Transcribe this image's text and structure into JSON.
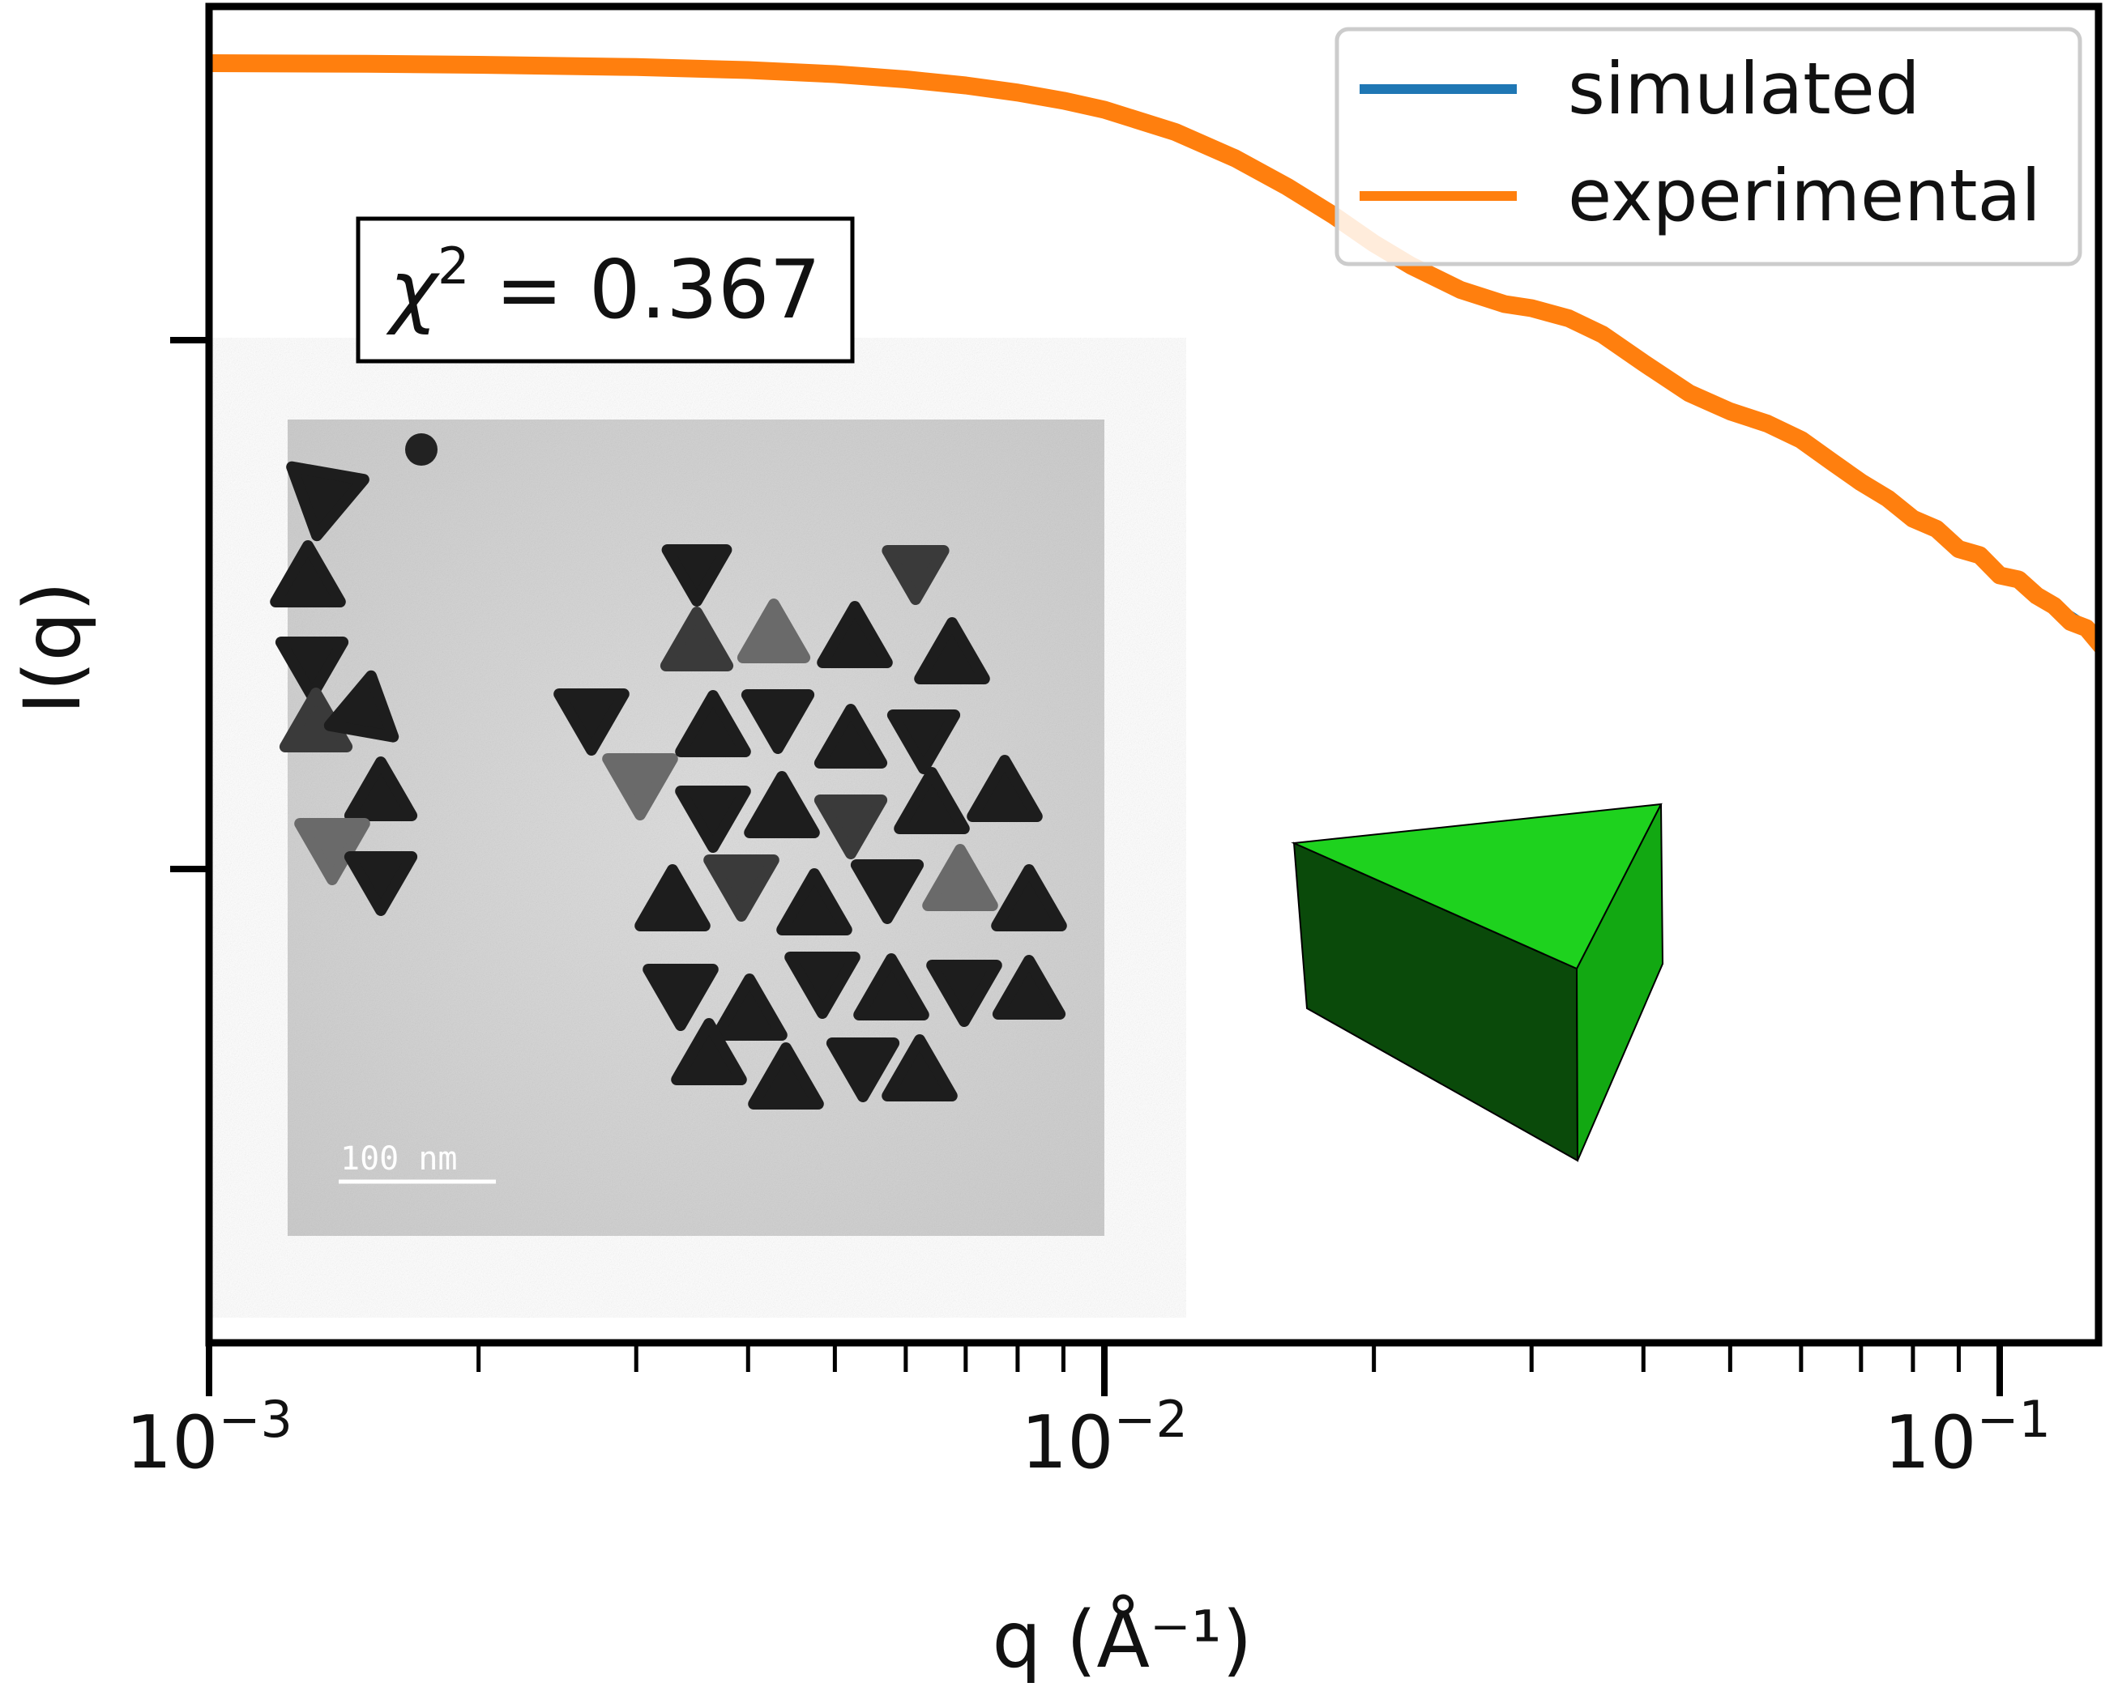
{
  "chart_data": {
    "type": "line",
    "xscale": "log",
    "yscale": "log",
    "xlim": [
      0.001,
      0.13
    ],
    "xlabel": "q (Å⁻¹)",
    "ylabel": "I(q)",
    "x_tick_labels": [
      {
        "base": "10",
        "exp": "−3",
        "value": 0.001
      },
      {
        "base": "10",
        "exp": "−2",
        "value": 0.01
      },
      {
        "base": "10",
        "exp": "−1",
        "value": 0.1
      }
    ],
    "legend": {
      "placement": "top-right",
      "entries": [
        "simulated",
        "experimental"
      ]
    },
    "annotation": {
      "symbol": "χ",
      "sup": "2",
      "text": " = 0.367"
    },
    "inset": {
      "scale_bar_label": "100 nm"
    },
    "series": [
      {
        "name": "simulated",
        "color": "#1f77b4",
        "x": [
          0.001,
          0.0015,
          0.002,
          0.003,
          0.004,
          0.005,
          0.006,
          0.007,
          0.008,
          0.009,
          0.01,
          0.012,
          0.014,
          0.016,
          0.018,
          0.02,
          0.022,
          0.025,
          0.028,
          0.03,
          0.033,
          0.036,
          0.04,
          0.045,
          0.05,
          0.055,
          0.06,
          0.065,
          0.07,
          0.08,
          0.09,
          0.1,
          0.11,
          0.12,
          0.13
        ],
        "y": [
          0.0,
          -0.002,
          -0.006,
          -0.016,
          -0.03,
          -0.05,
          -0.075,
          -0.105,
          -0.14,
          -0.18,
          -0.225,
          -0.33,
          -0.46,
          -0.6,
          -0.74,
          -0.87,
          -0.99,
          -1.13,
          -1.2,
          -1.22,
          -1.27,
          -1.35,
          -1.49,
          -1.64,
          -1.73,
          -1.79,
          -1.87,
          -1.98,
          -2.08,
          -2.24,
          -2.38,
          -2.52,
          -2.62,
          -2.72,
          -2.82
        ]
      },
      {
        "name": "experimental",
        "color": "#ff7f0e",
        "x": [
          0.001,
          0.0015,
          0.002,
          0.003,
          0.004,
          0.005,
          0.006,
          0.007,
          0.008,
          0.009,
          0.01,
          0.012,
          0.014,
          0.016,
          0.018,
          0.02,
          0.022,
          0.025,
          0.028,
          0.03,
          0.033,
          0.036,
          0.04,
          0.045,
          0.05,
          0.055,
          0.06,
          0.065,
          0.07,
          0.075,
          0.08,
          0.085,
          0.09,
          0.095,
          0.1,
          0.105,
          0.11,
          0.115,
          0.12,
          0.125,
          0.13
        ],
        "y": [
          0.0,
          -0.003,
          -0.008,
          -0.019,
          -0.034,
          -0.054,
          -0.08,
          -0.11,
          -0.145,
          -0.185,
          -0.23,
          -0.34,
          -0.47,
          -0.61,
          -0.75,
          -0.89,
          -1.0,
          -1.12,
          -1.19,
          -1.21,
          -1.26,
          -1.34,
          -1.48,
          -1.63,
          -1.72,
          -1.78,
          -1.86,
          -1.97,
          -2.07,
          -2.15,
          -2.25,
          -2.3,
          -2.4,
          -2.43,
          -2.53,
          -2.55,
          -2.63,
          -2.68,
          -2.76,
          -2.79,
          -2.88
        ]
      }
    ]
  }
}
